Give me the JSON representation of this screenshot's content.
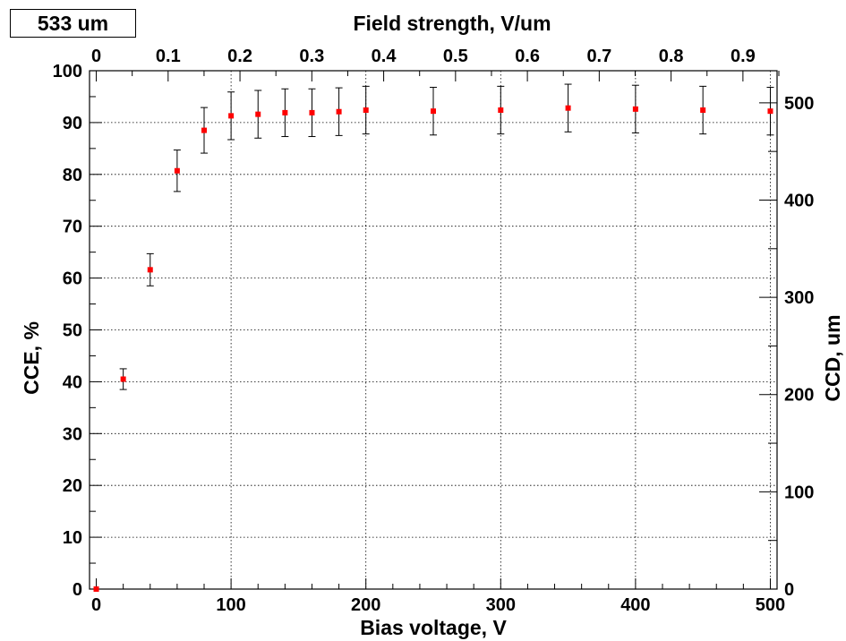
{
  "chart_data": {
    "type": "scatter",
    "legend_label": "533 um",
    "xlabel": "Bias voltage, V",
    "ylabel": "CCE, %",
    "x2label": "Field strength, V/um",
    "y2label": "CCD, um",
    "xlim": [
      -5,
      505
    ],
    "ylim": [
      0,
      100
    ],
    "x2lim": [
      -0.0094,
      0.9475
    ],
    "y2lim": [
      0,
      533
    ],
    "x_ticks": [
      "0",
      "100",
      "200",
      "300",
      "400",
      "500"
    ],
    "x_tick_values": [
      0,
      100,
      200,
      300,
      400,
      500
    ],
    "y_ticks": [
      "0",
      "10",
      "20",
      "30",
      "40",
      "50",
      "60",
      "70",
      "80",
      "90",
      "100"
    ],
    "y_tick_values": [
      0,
      10,
      20,
      30,
      40,
      50,
      60,
      70,
      80,
      90,
      100
    ],
    "x2_ticks": [
      "0",
      "0.1",
      "0.2",
      "0.3",
      "0.4",
      "0.5",
      "0.6",
      "0.7",
      "0.8",
      "0.9"
    ],
    "x2_tick_values": [
      0,
      0.1,
      0.2,
      0.3,
      0.4,
      0.5,
      0.6,
      0.7,
      0.8,
      0.9
    ],
    "y2_ticks": [
      "0",
      "100",
      "200",
      "300",
      "400",
      "500"
    ],
    "y2_tick_values": [
      0,
      100,
      200,
      300,
      400,
      500
    ],
    "grid": true,
    "marker_color": "#ff0000",
    "points": {
      "x": [
        0,
        20,
        40,
        60,
        80,
        100,
        120,
        140,
        160,
        180,
        200,
        250,
        300,
        350,
        400,
        450,
        500
      ],
      "y": [
        0,
        40.5,
        61.6,
        80.7,
        88.5,
        91.3,
        91.6,
        91.9,
        91.9,
        92.1,
        92.4,
        92.2,
        92.4,
        92.8,
        92.6,
        92.4,
        92.2
      ],
      "err": [
        0,
        2.0,
        3.1,
        4.0,
        4.4,
        4.6,
        4.6,
        4.6,
        4.6,
        4.6,
        4.6,
        4.6,
        4.6,
        4.6,
        4.6,
        4.6,
        4.6
      ]
    }
  }
}
